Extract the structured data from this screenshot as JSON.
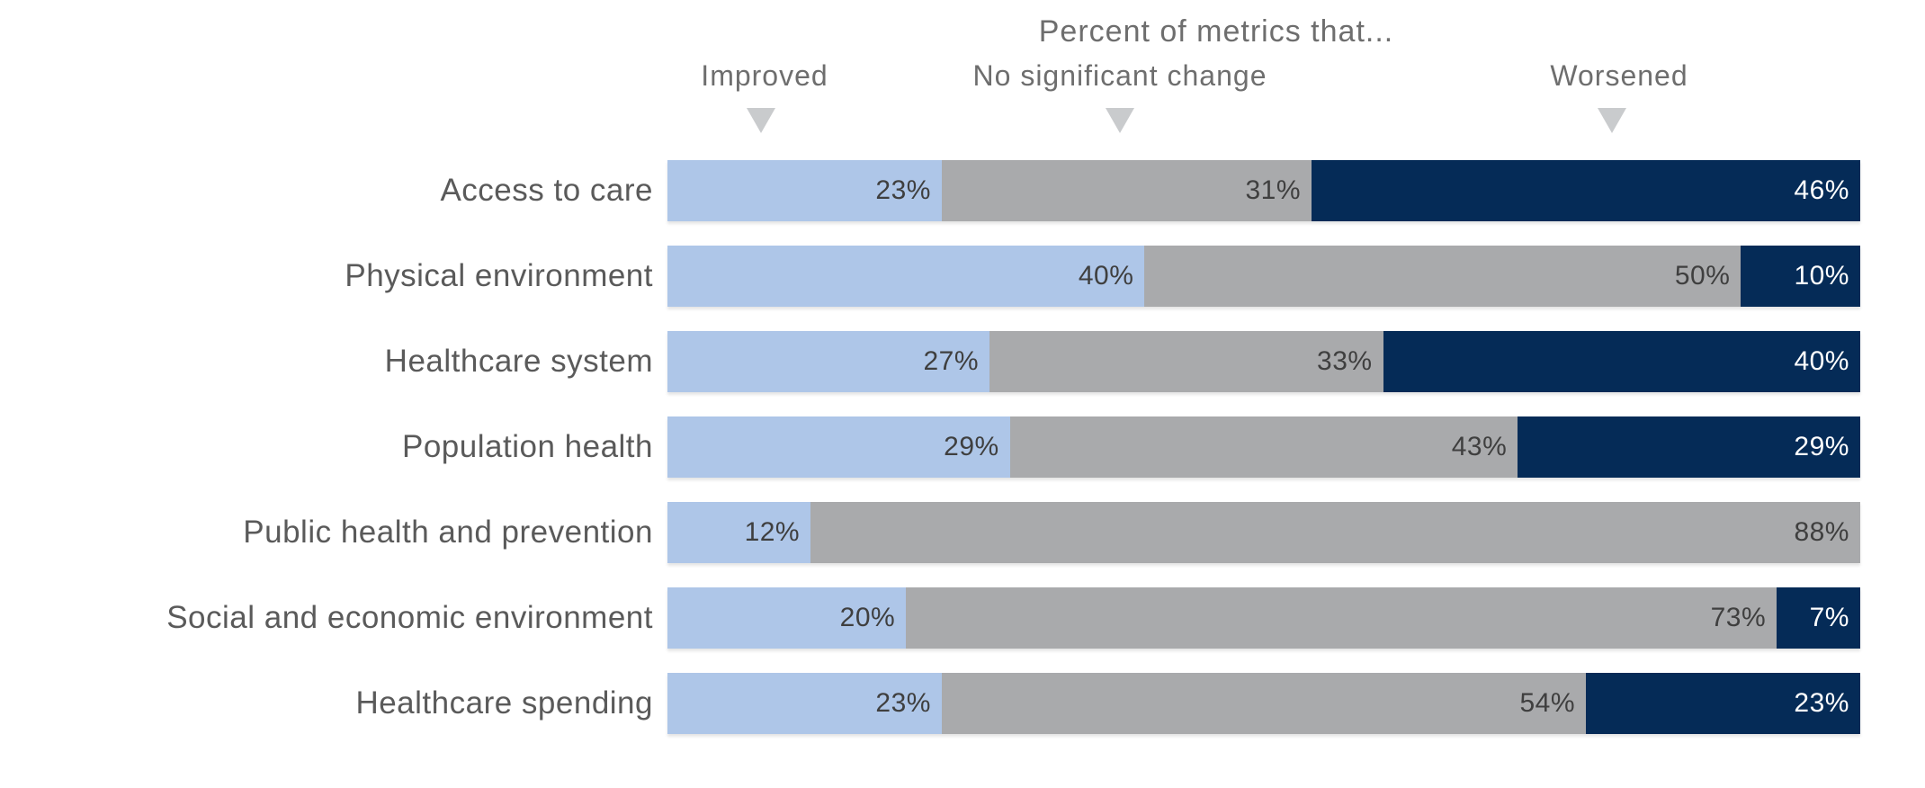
{
  "title": "Percent of metrics that...",
  "legend": [
    {
      "label": "Improved",
      "color": "#aec6e8"
    },
    {
      "label": "No significant change",
      "color": "#a9aaac"
    },
    {
      "label": "Worsened",
      "color": "#052b57"
    }
  ],
  "chart_data": {
    "type": "bar",
    "orientation": "horizontal-stacked",
    "title": "Percent of metrics that...",
    "categories": [
      "Access to care",
      "Physical environment",
      "Healthcare system",
      "Population health",
      "Public health and prevention",
      "Social and economic environment",
      "Healthcare spending"
    ],
    "series": [
      {
        "name": "Improved",
        "color": "#aec6e8",
        "values": [
          23,
          40,
          27,
          29,
          12,
          20,
          23
        ]
      },
      {
        "name": "No significant change",
        "color": "#a9aaac",
        "values": [
          31,
          50,
          33,
          43,
          88,
          73,
          54
        ]
      },
      {
        "name": "Worsened",
        "color": "#052b57",
        "values": [
          46,
          10,
          40,
          29,
          0,
          7,
          23
        ]
      }
    ],
    "value_format": "percent",
    "value_suffix": "%",
    "legend_position": "top",
    "grid": false,
    "axis_labels_shown": false
  }
}
